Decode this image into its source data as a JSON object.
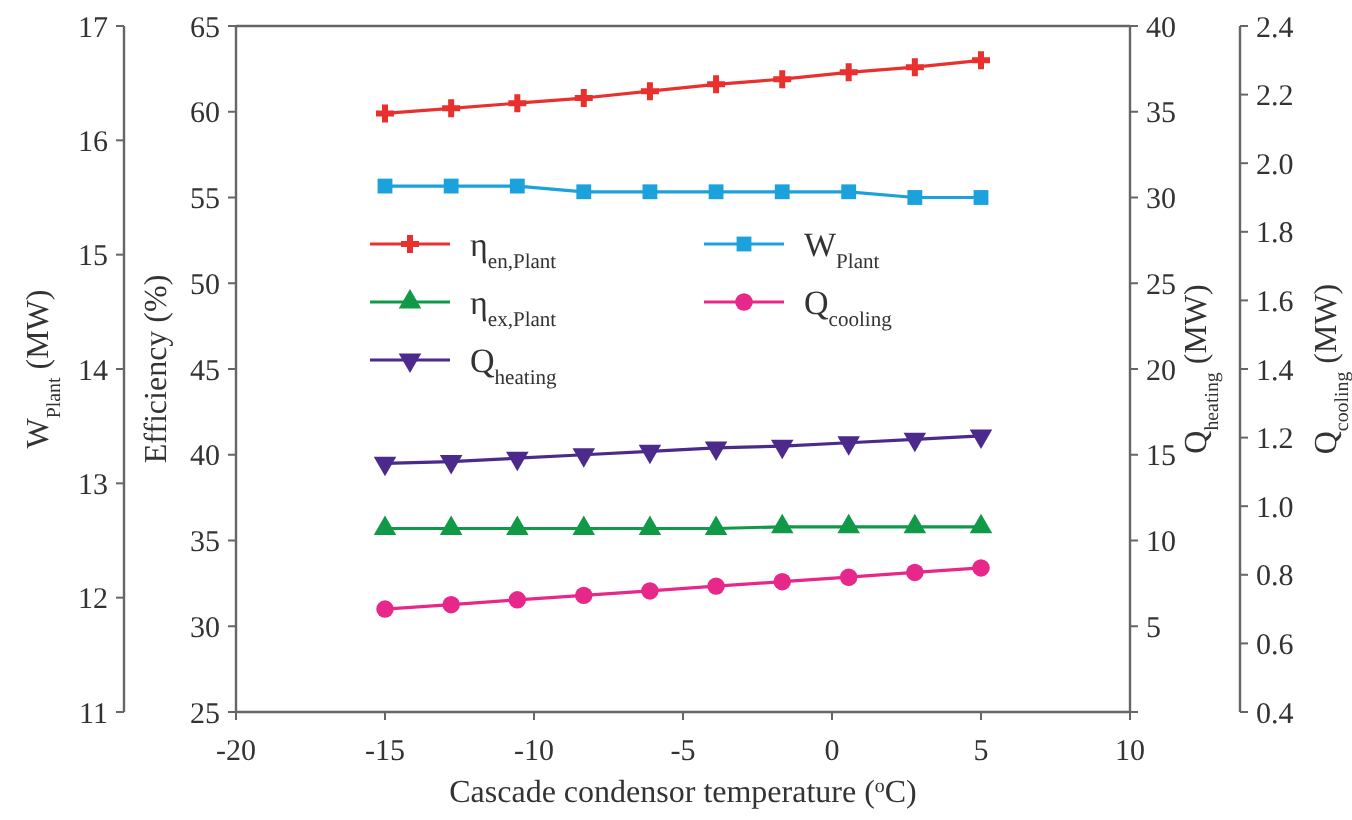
{
  "chart_data": [
    {
      "type": "line",
      "ylabel": "W$_{Plant}$ (MW)",
      "x": [
        -15,
        -12.78,
        -10.56,
        -8.33,
        -6.11,
        -3.89,
        -1.67,
        0.56,
        2.78,
        5
      ],
      "xlim": [
        -20,
        10
      ],
      "ylim": [
        11,
        17
      ],
      "yticks": [
        11,
        12,
        13,
        14,
        15,
        16,
        17
      ],
      "tick_labels": "y",
      "legend": "top right",
      "line_style": "solid",
      "series": [
        {
          "name": "W$_{Plant}$",
          "color": "#1ba1dc",
          "marker": "square",
          "values": [
            15.6,
            15.6,
            15.6,
            15.55,
            15.55,
            15.55,
            15.55,
            15.55,
            15.5,
            15.5
          ]
        }
      ]
    },
    {
      "type": "line",
      "xlabel": "Cascade condensor temperature ($^{o}$C)",
      "ylabel": "Efficiency (%)",
      "y2label": "Q$_{heating}$ (MW)",
      "y3label": "Q$_{cooling}$ (MW)",
      "x": [
        -15,
        -12.78,
        -10.56,
        -8.33,
        -6.11,
        -3.89,
        -1.67,
        0.56,
        2.78,
        5
      ],
      "xlim": [
        -20,
        10
      ],
      "xticks": [
        -20,
        -15,
        -10,
        -5,
        0,
        5,
        10
      ],
      "ylim": [
        25,
        65
      ],
      "yticks": [
        25,
        30,
        35,
        40,
        45,
        50,
        55,
        60,
        65
      ],
      "y2lim": [
        0,
        40
      ],
      "y2ticks": [
        {
          "value": 0,
          "label": null
        },
        5,
        10,
        15,
        20,
        25,
        30,
        35,
        40
      ],
      "y3lim": [
        0.4,
        2.4
      ],
      "y3ticks": [
        {
          "value": 0.4,
          "label": "0.4"
        },
        {
          "value": 0.6,
          "label": "0.6"
        },
        {
          "value": 0.8,
          "label": "0.8"
        },
        {
          "value": 1.0,
          "label": "1.0"
        },
        {
          "value": 1.2,
          "label": "1.2"
        },
        {
          "value": 1.4,
          "label": "1.4"
        },
        {
          "value": 1.6,
          "label": "1.6"
        },
        {
          "value": 1.8,
          "label": "1.8"
        },
        {
          "value": 2.0,
          "label": "2.0"
        },
        {
          "value": 2.2,
          "label": "2.2"
        },
        {
          "value": 2.4,
          "label": "2.4"
        }
      ],
      "legend": "top left",
      "line_style": "solid",
      "series": [
        {
          "name": "η$_{en,Plant}$",
          "color": "#e8312f",
          "marker": "cross",
          "values": [
            59.9,
            60.2,
            60.5,
            60.8,
            61.2,
            61.6,
            61.9,
            62.3,
            62.6,
            63.0
          ]
        },
        {
          "name": "η$_{ex,Plant}$",
          "color": "#109a48",
          "marker": "triangle",
          "values": [
            35.7,
            35.7,
            35.7,
            35.7,
            35.7,
            35.7,
            35.8,
            35.8,
            35.8,
            35.8
          ]
        },
        {
          "name": "Q$_{cooling}$",
          "color": "#e8278a",
          "marker": "circle",
          "axis": "y3",
          "values": [
            0.7,
            0.713,
            0.727,
            0.74,
            0.753,
            0.767,
            0.78,
            0.793,
            0.807,
            0.82
          ]
        },
        {
          "name": "Q$_{heating}$",
          "color": "#4b2a8c",
          "marker": "triangle-down",
          "axis": "y2",
          "values": [
            14.5,
            14.6,
            14.8,
            15.0,
            15.2,
            15.4,
            15.5,
            15.7,
            15.9,
            16.1
          ]
        }
      ]
    }
  ]
}
